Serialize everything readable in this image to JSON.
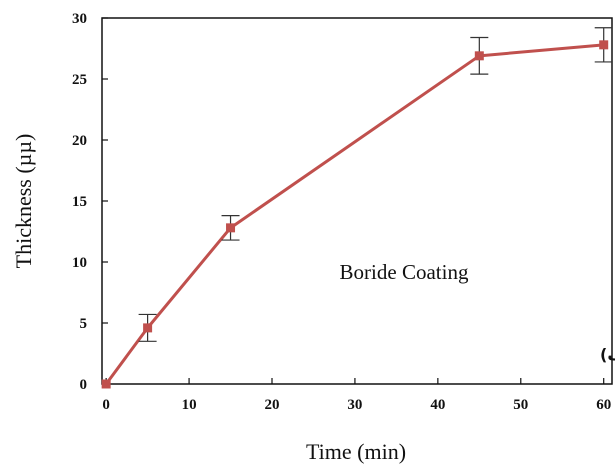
{
  "chart_data": {
    "type": "line",
    "title": "",
    "xlabel": "Time (min)",
    "ylabel": "Thickness (µµ)",
    "xlim": [
      -0.5,
      61
    ],
    "ylim": [
      0,
      30
    ],
    "xticks": [
      0,
      10,
      20,
      30,
      40,
      50,
      60
    ],
    "yticks": [
      0,
      5,
      10,
      15,
      20,
      25,
      30
    ],
    "grid": false,
    "series": [
      {
        "x": [
          0,
          5,
          15,
          45,
          60
        ],
        "y": [
          0,
          4.6,
          12.8,
          26.9,
          27.8
        ],
        "error": [
          0,
          1.1,
          1.0,
          1.5,
          1.4
        ],
        "color": "#c0504d",
        "marker": "square"
      }
    ],
    "annotations": [
      {
        "text": "Boride Coating"
      },
      {
        "text": "(الف)"
      }
    ]
  }
}
